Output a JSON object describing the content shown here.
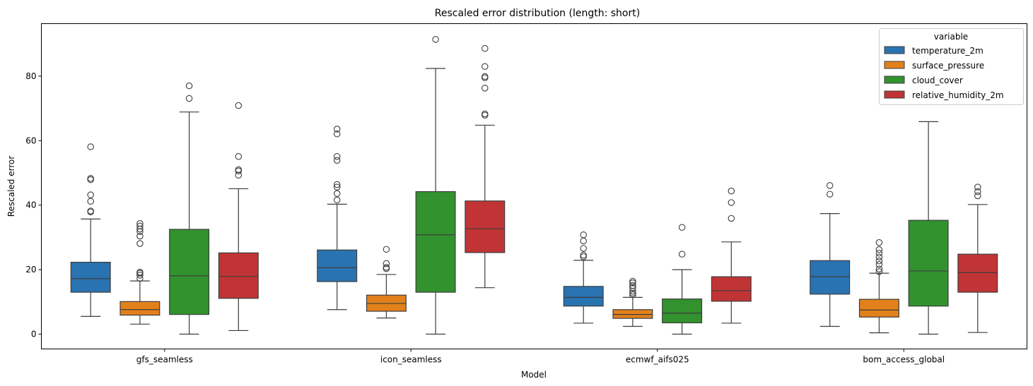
{
  "chart_data": {
    "type": "box",
    "title": "Rescaled error distribution (length: short)",
    "xlabel": "Model",
    "ylabel": "Rescaled error",
    "ylim": [
      -4.6,
      96.3
    ],
    "yticks": [
      0,
      20,
      40,
      60,
      80
    ],
    "categories": [
      "gfs_seamless",
      "icon_seamless",
      "ecmwf_aifs025",
      "bom_access_global"
    ],
    "legend": {
      "title": "variable",
      "placement": "top-right"
    },
    "series": [
      {
        "name": "temperature_2m",
        "color": "#2a73b1",
        "boxes": [
          {
            "whislo": 5.5,
            "q1": 13.0,
            "med": 17.2,
            "q3": 22.3,
            "whishi": 35.7,
            "fliers": [
              37.9,
              38.2,
              41.2,
              43.2,
              47.9,
              48.3,
              58.1
            ]
          },
          {
            "whislo": 7.6,
            "q1": 16.3,
            "med": 20.6,
            "q3": 26.1,
            "whishi": 40.3,
            "fliers": [
              41.6,
              43.6,
              45.6,
              46.4,
              53.9,
              55.1,
              62.1,
              63.6
            ]
          },
          {
            "whislo": 3.4,
            "q1": 8.7,
            "med": 11.4,
            "q3": 14.8,
            "whishi": 22.9,
            "fliers": [
              24.0,
              24.5,
              26.6,
              28.9,
              30.8
            ]
          },
          {
            "whislo": 2.4,
            "q1": 12.4,
            "med": 17.8,
            "q3": 22.8,
            "whishi": 37.4,
            "fliers": [
              43.4,
              46.1
            ]
          }
        ]
      },
      {
        "name": "surface_pressure",
        "color": "#e2811c",
        "boxes": [
          {
            "whislo": 3.1,
            "q1": 5.9,
            "med": 7.6,
            "q3": 10.1,
            "whishi": 16.5,
            "fliers": [
              17.3,
              18.3,
              18.9,
              19.2,
              28.1,
              30.4,
              31.8,
              32.6,
              33.5,
              34.3
            ]
          },
          {
            "whislo": 5.0,
            "q1": 7.1,
            "med": 9.5,
            "q3": 12.1,
            "whishi": 18.5,
            "fliers": [
              20.3,
              20.7,
              21.9,
              26.3
            ]
          },
          {
            "whislo": 2.4,
            "q1": 4.9,
            "med": 6.1,
            "q3": 7.6,
            "whishi": 11.4,
            "fliers": [
              12.2,
              12.7,
              13.3,
              14.3,
              15.1,
              15.9,
              16.4
            ]
          },
          {
            "whislo": 0.4,
            "q1": 5.3,
            "med": 7.5,
            "q3": 10.8,
            "whishi": 18.9,
            "fliers": [
              19.4,
              20.2,
              21.6,
              22.7,
              23.9,
              25.1,
              26.2,
              28.4
            ]
          }
        ]
      },
      {
        "name": "cloud_cover",
        "color": "#32922e",
        "boxes": [
          {
            "whislo": 0.0,
            "q1": 6.1,
            "med": 18.1,
            "q3": 32.5,
            "whishi": 68.9,
            "fliers": [
              73.1,
              77.0
            ]
          },
          {
            "whislo": 0.0,
            "q1": 13.0,
            "med": 30.8,
            "q3": 44.2,
            "whishi": 82.4,
            "fliers": [
              91.4
            ]
          },
          {
            "whislo": 0.0,
            "q1": 3.5,
            "med": 6.5,
            "q3": 10.9,
            "whishi": 20.0,
            "fliers": [
              24.8,
              33.1
            ]
          },
          {
            "whislo": 0.0,
            "q1": 8.7,
            "med": 19.6,
            "q3": 35.3,
            "whishi": 65.9,
            "fliers": []
          }
        ]
      },
      {
        "name": "relative_humidity_2m",
        "color": "#c13435",
        "boxes": [
          {
            "whislo": 1.1,
            "q1": 11.1,
            "med": 17.9,
            "q3": 25.2,
            "whishi": 45.1,
            "fliers": [
              49.3,
              50.6,
              51.0,
              55.1,
              70.9
            ]
          },
          {
            "whislo": 14.4,
            "q1": 25.3,
            "med": 32.7,
            "q3": 41.3,
            "whishi": 64.8,
            "fliers": [
              67.9,
              68.3,
              76.3,
              79.5,
              79.9,
              83.0,
              88.6
            ]
          },
          {
            "whislo": 3.4,
            "q1": 10.2,
            "med": 13.5,
            "q3": 17.8,
            "whishi": 28.6,
            "fliers": [
              35.9,
              40.8,
              44.4
            ]
          },
          {
            "whislo": 0.5,
            "q1": 13.0,
            "med": 19.1,
            "q3": 24.8,
            "whishi": 40.2,
            "fliers": [
              42.9,
              44.2,
              45.6
            ]
          }
        ]
      }
    ]
  }
}
